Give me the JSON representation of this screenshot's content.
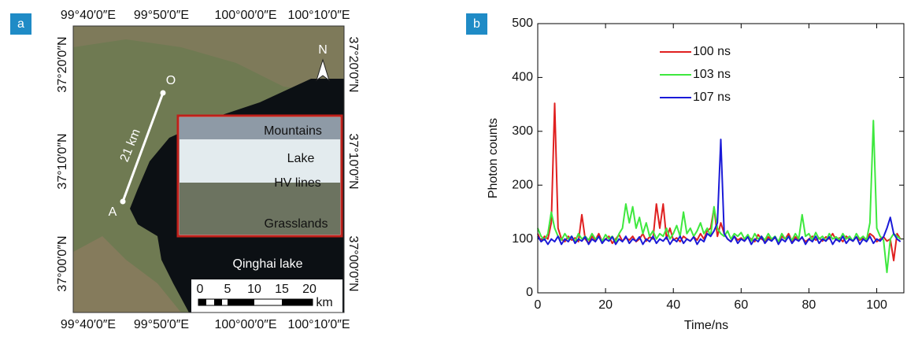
{
  "map": {
    "label": "a",
    "lon_ticks": [
      "99°40′0″E",
      "99°50′0″E",
      "100°00′0″E",
      "100°10′0″E"
    ],
    "lat_ticks": [
      "37°20′0″N",
      "37°10′0″N",
      "37°00′0″N"
    ],
    "point_o": "O",
    "point_a": "A",
    "distance": "21 km",
    "north": "N",
    "inset": [
      "Mountains",
      "Lake",
      "HV lines",
      "Grasslands"
    ],
    "lake": "Qinghai lake",
    "scale": [
      "0",
      "5",
      "10",
      "15",
      "20"
    ],
    "scale_unit": "km"
  },
  "chart_data": {
    "type": "line",
    "label": "b",
    "xlabel": "Time/ns",
    "ylabel": "Photon counts",
    "xlim": [
      0,
      108
    ],
    "ylim": [
      0,
      500
    ],
    "xticks": [
      0,
      20,
      40,
      60,
      80,
      100
    ],
    "yticks": [
      0,
      100,
      200,
      300,
      400,
      500
    ],
    "x": [
      0,
      1,
      2,
      3,
      4,
      5,
      6,
      7,
      8,
      9,
      10,
      11,
      12,
      13,
      14,
      15,
      16,
      17,
      18,
      19,
      20,
      21,
      22,
      23,
      24,
      25,
      26,
      27,
      28,
      29,
      30,
      31,
      32,
      33,
      34,
      35,
      36,
      37,
      38,
      39,
      40,
      41,
      42,
      43,
      44,
      45,
      46,
      47,
      48,
      49,
      50,
      51,
      52,
      53,
      54,
      55,
      56,
      57,
      58,
      59,
      60,
      61,
      62,
      63,
      64,
      65,
      66,
      67,
      68,
      69,
      70,
      71,
      72,
      73,
      74,
      75,
      76,
      77,
      78,
      79,
      80,
      81,
      82,
      83,
      84,
      85,
      86,
      87,
      88,
      89,
      90,
      91,
      92,
      93,
      94,
      95,
      96,
      97,
      98,
      99,
      100,
      101,
      102,
      103,
      104,
      105,
      106,
      107
    ],
    "series": [
      {
        "name": "100 ns",
        "color": "#e02020",
        "values": [
          110,
          95,
          105,
          100,
          130,
          352,
          120,
          100,
          95,
          105,
          98,
          102,
          95,
          145,
          100,
          92,
          105,
          98,
          110,
          95,
          100,
          105,
          92,
          100,
          108,
          96,
          102,
          98,
          105,
          95,
          100,
          110,
          96,
          104,
          100,
          165,
          120,
          165,
          100,
          120,
          98,
          102,
          95,
          105,
          100,
          96,
          104,
          98,
          110,
          100,
          115,
          120,
          158,
          105,
          130,
          110,
          100,
          95,
          105,
          98,
          102,
          96,
          104,
          100,
          95,
          108,
          100,
          96,
          104,
          98,
          102,
          95,
          105,
          100,
          110,
          96,
          104,
          98,
          102,
          95,
          100,
          105,
          98,
          102,
          96,
          104,
          100,
          110,
          98,
          102,
          95,
          105,
          100,
          96,
          104,
          98,
          102,
          100,
          110,
          105,
          95,
          100,
          104,
          96,
          100,
          60,
          110,
          100
        ]
      },
      {
        "name": "103 ns",
        "color": "#3ee83e",
        "values": [
          120,
          105,
          98,
          110,
          150,
          120,
          105,
          98,
          110,
          100,
          105,
          95,
          110,
          100,
          105,
          98,
          110,
          100,
          104,
          96,
          108,
          100,
          105,
          95,
          110,
          120,
          165,
          130,
          160,
          120,
          140,
          110,
          130,
          105,
          115,
          100,
          110,
          105,
          120,
          100,
          110,
          125,
          105,
          150,
          110,
          120,
          105,
          115,
          130,
          110,
          120,
          105,
          160,
          120,
          110,
          105,
          115,
          100,
          110,
          105,
          112,
          100,
          108,
          96,
          110,
          100,
          105,
          98,
          110,
          100,
          105,
          95,
          110,
          100,
          105,
          98,
          110,
          100,
          145,
          105,
          110,
          98,
          112,
          100,
          105,
          96,
          110,
          100,
          104,
          98,
          110,
          100,
          105,
          96,
          110,
          100,
          105,
          98,
          130,
          320,
          120,
          105,
          98,
          38,
          100,
          110,
          105,
          100
        ]
      },
      {
        "name": "107 ns",
        "color": "#1a1ad8",
        "values": [
          105,
          95,
          100,
          90,
          100,
          95,
          105,
          90,
          100,
          95,
          105,
          92,
          100,
          96,
          104,
          90,
          100,
          95,
          105,
          92,
          100,
          96,
          104,
          90,
          100,
          95,
          105,
          92,
          100,
          96,
          104,
          90,
          100,
          95,
          105,
          92,
          100,
          96,
          104,
          90,
          100,
          95,
          105,
          92,
          100,
          96,
          104,
          90,
          100,
          95,
          110,
          105,
          115,
          130,
          285,
          110,
          100,
          95,
          105,
          92,
          100,
          96,
          104,
          90,
          100,
          95,
          105,
          92,
          100,
          96,
          104,
          90,
          100,
          95,
          105,
          92,
          100,
          96,
          104,
          90,
          100,
          95,
          105,
          92,
          100,
          96,
          104,
          90,
          100,
          95,
          105,
          92,
          100,
          96,
          104,
          90,
          100,
          95,
          105,
          92,
          100,
          96,
          104,
          120,
          140,
          110,
          100,
          95
        ]
      }
    ]
  }
}
